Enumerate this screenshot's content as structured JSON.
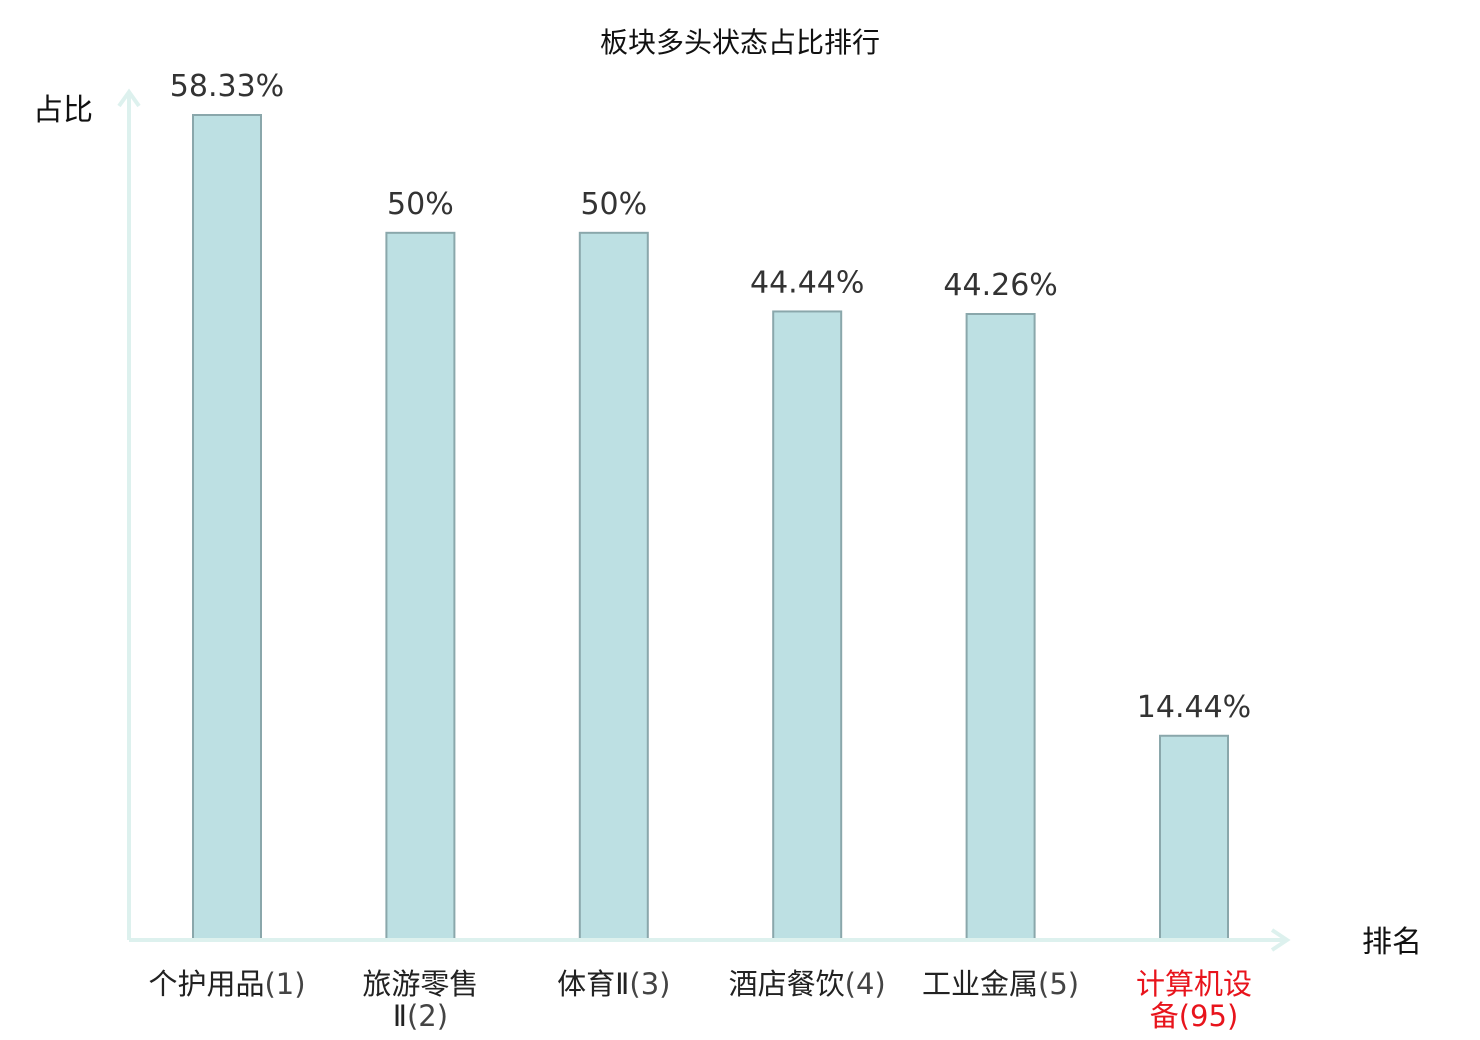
{
  "chart_data": {
    "type": "bar",
    "title": "板块多头状态占比排行",
    "ylabel": "占比",
    "xlabel": "排名",
    "categories": [
      {
        "name_lines": [
          "个护用品"
        ],
        "rank": "(1)",
        "rank_on_last_line": true,
        "highlight": false
      },
      {
        "name_lines": [
          "旅游零售",
          "Ⅱ"
        ],
        "rank": "(2)",
        "highlight": false
      },
      {
        "name_lines": [
          "体育Ⅱ"
        ],
        "rank": "(3)",
        "highlight": false
      },
      {
        "name_lines": [
          "酒店餐饮"
        ],
        "rank": "(4)",
        "highlight": false
      },
      {
        "name_lines": [
          "工业金属"
        ],
        "rank": "(5)",
        "highlight": false
      },
      {
        "name_lines": [
          "计算机设",
          "备"
        ],
        "rank": "(95)",
        "highlight": true
      }
    ],
    "values": [
      58.33,
      50,
      50,
      44.44,
      44.26,
      14.44
    ],
    "value_labels": [
      "58.33%",
      "50%",
      "50%",
      "44.44%",
      "44.26%",
      "14.44%"
    ],
    "ylim": [
      0,
      58.33
    ],
    "grid": false,
    "legend": "none",
    "colors": {
      "bar_fill": "#bde0e3",
      "bar_stroke": "#8aa7ab",
      "axis": "#ddf1ee",
      "highlight_label": "#e8141c"
    }
  }
}
